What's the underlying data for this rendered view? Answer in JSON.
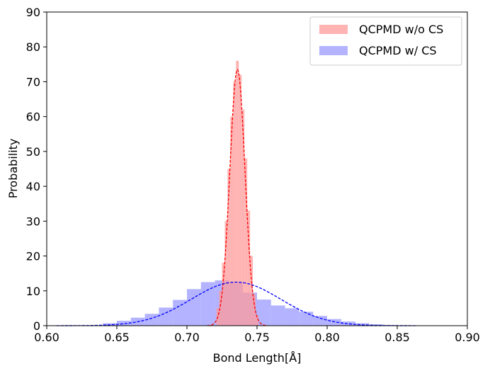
{
  "chart_data": {
    "type": "bar",
    "xlabel": "Bond Length[Å]",
    "ylabel": "Probability",
    "xlim": [
      0.6,
      0.9
    ],
    "ylim": [
      0,
      90
    ],
    "xticks": [
      "0.60",
      "0.65",
      "0.70",
      "0.75",
      "0.80",
      "0.85",
      "0.90"
    ],
    "yticks": [
      "0",
      "10",
      "20",
      "30",
      "40",
      "50",
      "60",
      "70",
      "80",
      "90"
    ],
    "grid": false,
    "legend_position": "top-right",
    "series": [
      {
        "name": "QCPMD w/o CS",
        "kind": "histogram",
        "color": "#ff9999",
        "fit_color": "#ff0000",
        "fit_mean": 0.736,
        "fit_sigma": 0.0054,
        "fit_peak": 73.5,
        "x": [
          0.722,
          0.724,
          0.726,
          0.728,
          0.73,
          0.732,
          0.734,
          0.736,
          0.738,
          0.74,
          0.742,
          0.744,
          0.746,
          0.748,
          0.75
        ],
        "values": [
          5,
          10,
          18,
          30,
          45,
          60,
          70,
          76,
          72,
          62,
          48,
          33,
          20,
          9,
          3
        ]
      },
      {
        "name": "QCPMD w/ CS",
        "kind": "histogram",
        "color": "#9999ff",
        "fit_color": "#0000ff",
        "fit_mean": 0.735,
        "fit_sigma": 0.032,
        "fit_peak": 12.5,
        "x": [
          0.645,
          0.655,
          0.665,
          0.675,
          0.685,
          0.695,
          0.705,
          0.715,
          0.725,
          0.735,
          0.745,
          0.755,
          0.765,
          0.775,
          0.785,
          0.795,
          0.805,
          0.815,
          0.825,
          0.835,
          0.845
        ],
        "values": [
          0.7,
          1.4,
          2.3,
          3.4,
          5.2,
          7.4,
          10.5,
          12.5,
          13.0,
          12.3,
          9.5,
          7.5,
          5.8,
          5.0,
          4.0,
          2.8,
          1.9,
          1.2,
          0.7,
          0.4,
          0.2
        ]
      }
    ]
  }
}
